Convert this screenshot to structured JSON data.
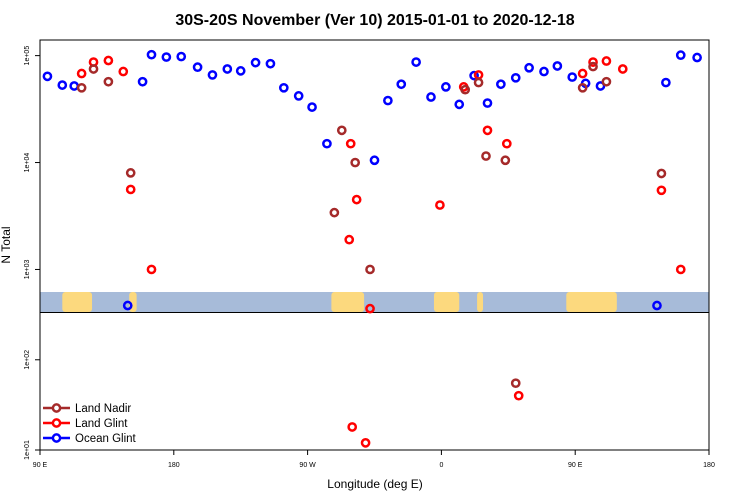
{
  "chart_data": {
    "type": "scatter",
    "title": "30S-20S November (Ver 10)   2015-01-01 to 2020-12-18",
    "xlabel": "Longitude (deg E)",
    "ylabel": "N Total",
    "y_scale": "log",
    "x_axis": {
      "description": "Longitude axis spanning 90 E eastward across the dateline to 180 (one and a half turns of longitude)",
      "tick_labels": [
        "90 E",
        "180",
        "90 W",
        "0",
        "90 E",
        "180"
      ],
      "tick_values": [
        90,
        180,
        270,
        360,
        450,
        540
      ],
      "range": [
        90,
        540
      ]
    },
    "panels": [
      {
        "name": "upper",
        "y_range": [
          400,
          140000
        ],
        "tick_labels": [
          "1e+03",
          "1e+04",
          "1e+05"
        ],
        "tick_values": [
          1000,
          10000,
          100000
        ]
      },
      {
        "name": "lower",
        "y_range": [
          10,
          330
        ],
        "tick_labels": [
          "1e+01",
          "1e+02"
        ],
        "tick_values": [
          10,
          100
        ]
      }
    ],
    "legend": {
      "placement": "bottom-left",
      "entries": [
        {
          "label": "Land Nadir",
          "color": "#a52a2a"
        },
        {
          "label": "Land Glint",
          "color": "#ff0000"
        },
        {
          "label": "Ocean Glint",
          "color": "#0000ff"
        }
      ]
    },
    "series": [
      {
        "name": "Ocean Glint",
        "color": "#0000ff",
        "points": [
          {
            "x": 95,
            "y": 64000
          },
          {
            "x": 105,
            "y": 53000
          },
          {
            "x": 113,
            "y": 52000
          },
          {
            "x": 159,
            "y": 57000
          },
          {
            "x": 165,
            "y": 102000
          },
          {
            "x": 175,
            "y": 97000
          },
          {
            "x": 185,
            "y": 98000
          },
          {
            "x": 196,
            "y": 78000
          },
          {
            "x": 206,
            "y": 66000
          },
          {
            "x": 216,
            "y": 75000
          },
          {
            "x": 225,
            "y": 72000
          },
          {
            "x": 235,
            "y": 86000
          },
          {
            "x": 245,
            "y": 84000
          },
          {
            "x": 254,
            "y": 50000
          },
          {
            "x": 264,
            "y": 42000
          },
          {
            "x": 273,
            "y": 33000
          },
          {
            "x": 283,
            "y": 15000
          },
          {
            "x": 315,
            "y": 10500
          },
          {
            "x": 324,
            "y": 38000
          },
          {
            "x": 333,
            "y": 54000
          },
          {
            "x": 343,
            "y": 87000
          },
          {
            "x": 353,
            "y": 41000
          },
          {
            "x": 363,
            "y": 51000
          },
          {
            "x": 372,
            "y": 35000
          },
          {
            "x": 382,
            "y": 65000
          },
          {
            "x": 391,
            "y": 36000
          },
          {
            "x": 400,
            "y": 54000
          },
          {
            "x": 410,
            "y": 62000
          },
          {
            "x": 419,
            "y": 77000
          },
          {
            "x": 429,
            "y": 71000
          },
          {
            "x": 438,
            "y": 80000
          },
          {
            "x": 448,
            "y": 63000
          },
          {
            "x": 457,
            "y": 55000
          },
          {
            "x": 467,
            "y": 52000
          },
          {
            "x": 511,
            "y": 56000
          },
          {
            "x": 521,
            "y": 101000
          },
          {
            "x": 532,
            "y": 96000
          },
          {
            "x": 149,
            "y": 460
          },
          {
            "x": 505,
            "y": 460
          }
        ]
      },
      {
        "name": "Land Glint",
        "color": "#ff0000",
        "points": [
          {
            "x": 118,
            "y": 68000
          },
          {
            "x": 126,
            "y": 87000
          },
          {
            "x": 136,
            "y": 90000
          },
          {
            "x": 146,
            "y": 71000
          },
          {
            "x": 151,
            "y": 5600
          },
          {
            "x": 165,
            "y": 1000
          },
          {
            "x": 298,
            "y": 1900
          },
          {
            "x": 299,
            "y": 15000
          },
          {
            "x": 303,
            "y": 4500
          },
          {
            "x": 312,
            "y": 430
          },
          {
            "x": 359,
            "y": 4000
          },
          {
            "x": 375,
            "y": 51000
          },
          {
            "x": 385,
            "y": 66000
          },
          {
            "x": 391,
            "y": 20000
          },
          {
            "x": 404,
            "y": 15000
          },
          {
            "x": 412,
            "y": 40
          },
          {
            "x": 455,
            "y": 68000
          },
          {
            "x": 462,
            "y": 87000
          },
          {
            "x": 471,
            "y": 89000
          },
          {
            "x": 482,
            "y": 75000
          },
          {
            "x": 508,
            "y": 5500
          },
          {
            "x": 521,
            "y": 1000
          },
          {
            "x": 300,
            "y": 18
          },
          {
            "x": 309,
            "y": 12
          }
        ]
      },
      {
        "name": "Land Nadir",
        "color": "#a52a2a",
        "points": [
          {
            "x": 118,
            "y": 50000
          },
          {
            "x": 126,
            "y": 75000
          },
          {
            "x": 136,
            "y": 57000
          },
          {
            "x": 151,
            "y": 8000
          },
          {
            "x": 288,
            "y": 3400
          },
          {
            "x": 293,
            "y": 20000
          },
          {
            "x": 302,
            "y": 10000
          },
          {
            "x": 312,
            "y": 1000
          },
          {
            "x": 376,
            "y": 48000
          },
          {
            "x": 385,
            "y": 56000
          },
          {
            "x": 390,
            "y": 11500
          },
          {
            "x": 403,
            "y": 10500
          },
          {
            "x": 455,
            "y": 50000
          },
          {
            "x": 462,
            "y": 79000
          },
          {
            "x": 471,
            "y": 57000
          },
          {
            "x": 508,
            "y": 7900
          },
          {
            "x": 410,
            "y": 55
          }
        ]
      }
    ],
    "colors": {
      "map_ocean": "#a7bbd9",
      "map_land": "#fcd97e"
    }
  }
}
